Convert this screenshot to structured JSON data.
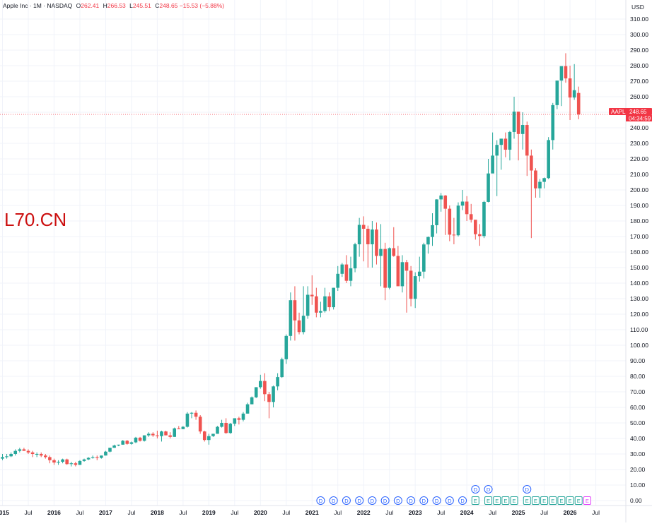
{
  "header": {
    "symbol_title": "Apple Inc · 1M · NASDAQ",
    "open_label": "O",
    "open": "262.41",
    "high_label": "H",
    "high": "266.53",
    "low_label": "L",
    "low": "245.51",
    "close_label": "C",
    "close": "248.65",
    "change": "−15.53 (−5.88%)"
  },
  "overlay_text": "L70.CN",
  "currency": "USD",
  "price_tag": {
    "symbol": "AAPL",
    "price": "248.65",
    "countdown": "04:34:59"
  },
  "colors": {
    "up": "#26a69a",
    "down": "#ef5350",
    "grid": "#f0f3fa",
    "dividend": "#2962ff",
    "earnings": "#26a69a",
    "earnings_future": "#e040fb"
  },
  "chart_data": {
    "type": "candlestick",
    "interval": "1M",
    "y_axis_ticks": [
      "0.00",
      "10.00",
      "20.00",
      "30.00",
      "40.00",
      "50.00",
      "60.00",
      "70.00",
      "80.00",
      "90.00",
      "100.00",
      "110.00",
      "120.00",
      "130.00",
      "140.00",
      "150.00",
      "160.00",
      "170.00",
      "180.00",
      "190.00",
      "200.00",
      "210.00",
      "220.00",
      "230.00",
      "240.00",
      "250.00",
      "260.00",
      "270.00",
      "280.00",
      "290.00",
      "300.00",
      "310.00"
    ],
    "ylim": [
      -10,
      320
    ],
    "x_axis_labels": [
      {
        "t": 0,
        "text": "2015",
        "bold": true
      },
      {
        "t": 6,
        "text": "Jul",
        "bold": false
      },
      {
        "t": 12,
        "text": "2016",
        "bold": true
      },
      {
        "t": 18,
        "text": "Jul",
        "bold": false
      },
      {
        "t": 24,
        "text": "2017",
        "bold": true
      },
      {
        "t": 30,
        "text": "Jul",
        "bold": false
      },
      {
        "t": 36,
        "text": "2018",
        "bold": true
      },
      {
        "t": 42,
        "text": "Jul",
        "bold": false
      },
      {
        "t": 48,
        "text": "2019",
        "bold": true
      },
      {
        "t": 54,
        "text": "Jul",
        "bold": false
      },
      {
        "t": 60,
        "text": "2020",
        "bold": true
      },
      {
        "t": 66,
        "text": "Jul",
        "bold": false
      },
      {
        "t": 72,
        "text": "2021",
        "bold": true
      },
      {
        "t": 78,
        "text": "Jul",
        "bold": false
      },
      {
        "t": 84,
        "text": "2022",
        "bold": true
      },
      {
        "t": 90,
        "text": "Jul",
        "bold": false
      },
      {
        "t": 96,
        "text": "2023",
        "bold": true
      },
      {
        "t": 102,
        "text": "Jul",
        "bold": false
      },
      {
        "t": 108,
        "text": "2024",
        "bold": true
      },
      {
        "t": 114,
        "text": "Jul",
        "bold": false
      },
      {
        "t": 120,
        "text": "2025",
        "bold": true
      },
      {
        "t": 126,
        "text": "Jul",
        "bold": false
      },
      {
        "t": 132,
        "text": "2026",
        "bold": true
      },
      {
        "t": 138,
        "text": "Jul",
        "bold": false
      }
    ],
    "current_price": 248.65,
    "candles": [
      [
        27,
        30,
        26,
        28
      ],
      [
        28,
        30,
        27,
        28.5
      ],
      [
        28.5,
        31,
        28,
        30
      ],
      [
        30,
        33,
        29,
        32
      ],
      [
        32,
        34,
        31,
        33
      ],
      [
        33,
        34,
        32,
        32
      ],
      [
        32,
        33,
        30,
        31
      ],
      [
        31,
        32,
        28,
        30
      ],
      [
        30,
        31,
        28,
        30
      ],
      [
        30,
        31,
        28,
        29
      ],
      [
        29,
        30,
        27,
        28
      ],
      [
        28,
        29,
        24,
        26
      ],
      [
        26,
        27,
        23,
        24.5
      ],
      [
        24.5,
        26,
        23,
        25
      ],
      [
        25,
        27,
        24,
        26.5
      ],
      [
        26.5,
        27,
        23,
        23.5
      ],
      [
        23.5,
        25,
        22,
        24
      ],
      [
        24,
        25,
        22,
        23
      ],
      [
        23,
        26,
        23,
        25.5
      ],
      [
        25.5,
        27,
        25,
        26.5
      ],
      [
        26.5,
        28,
        26,
        27.5
      ],
      [
        27.5,
        29,
        27,
        28
      ],
      [
        28,
        29,
        26,
        27.5
      ],
      [
        27.5,
        29,
        27,
        29
      ],
      [
        29,
        32,
        29,
        31.5
      ],
      [
        31.5,
        34,
        31,
        34
      ],
      [
        34,
        36,
        34,
        35.5
      ],
      [
        35.5,
        36,
        35,
        36
      ],
      [
        36,
        39,
        36,
        38.5
      ],
      [
        38.5,
        39,
        36,
        36.5
      ],
      [
        36.5,
        38,
        36,
        37.5
      ],
      [
        37.5,
        41,
        37,
        40.5
      ],
      [
        40.5,
        41,
        38,
        38.5
      ],
      [
        38.5,
        42,
        38,
        42
      ],
      [
        42,
        44,
        41,
        43
      ],
      [
        43,
        44,
        41,
        42
      ],
      [
        42,
        45,
        40,
        41.5
      ],
      [
        41.5,
        45,
        38,
        44.5
      ],
      [
        44.5,
        45,
        42,
        42
      ],
      [
        42,
        44,
        40,
        41
      ],
      [
        41,
        47,
        41,
        46.5
      ],
      [
        46.5,
        48,
        46,
        46
      ],
      [
        46,
        48,
        46,
        47.5
      ],
      [
        47.5,
        57,
        47,
        56
      ],
      [
        56,
        57,
        53,
        56.5
      ],
      [
        56.5,
        58,
        52,
        54
      ],
      [
        54,
        55,
        43,
        44.5
      ],
      [
        44.5,
        45,
        38,
        39
      ],
      [
        39,
        43,
        36,
        41.5
      ],
      [
        41.5,
        43,
        41,
        43
      ],
      [
        43,
        48,
        43,
        47.5
      ],
      [
        47.5,
        52,
        47,
        50
      ],
      [
        50,
        53,
        43,
        43.5
      ],
      [
        43.5,
        50,
        43,
        49.5
      ],
      [
        49.5,
        52,
        48,
        53
      ],
      [
        53,
        54,
        49,
        52
      ],
      [
        52,
        57,
        51,
        56
      ],
      [
        56,
        63,
        56,
        62
      ],
      [
        62,
        67,
        62,
        66.5
      ],
      [
        66.5,
        73,
        66,
        73
      ],
      [
        73,
        81,
        72,
        77
      ],
      [
        77,
        82,
        64,
        68.5
      ],
      [
        68.5,
        70,
        53,
        63.5
      ],
      [
        63.5,
        74,
        60,
        73.5
      ],
      [
        73.5,
        82,
        71,
        79.5
      ],
      [
        79.5,
        92,
        79,
        91
      ],
      [
        91,
        107,
        88,
        106
      ],
      [
        106,
        134,
        103,
        129
      ],
      [
        129,
        138,
        103,
        116
      ],
      [
        116,
        121,
        107,
        108.5
      ],
      [
        108.5,
        138,
        107,
        119
      ],
      [
        119,
        138,
        117,
        132.5
      ],
      [
        132.5,
        145,
        126,
        131.5
      ],
      [
        131.5,
        137,
        118,
        121
      ],
      [
        121,
        128,
        118,
        122
      ],
      [
        122,
        137,
        121,
        131.5
      ],
      [
        131.5,
        134,
        122,
        124.5
      ],
      [
        124.5,
        137,
        123,
        137
      ],
      [
        137,
        151,
        135,
        146
      ],
      [
        146,
        153,
        144,
        152
      ],
      [
        152,
        158,
        140,
        141.5
      ],
      [
        141.5,
        157,
        138,
        149.5
      ],
      [
        149.5,
        166,
        147,
        165
      ],
      [
        165,
        182,
        157,
        177.5
      ],
      [
        177.5,
        183,
        154,
        175
      ],
      [
        175,
        177,
        150,
        165
      ],
      [
        165,
        180,
        150,
        174.5
      ],
      [
        174.5,
        179,
        152,
        157.5
      ],
      [
        157.5,
        178,
        138,
        162
      ],
      [
        162,
        166,
        129,
        137
      ],
      [
        137,
        163,
        136,
        162.5
      ],
      [
        162.5,
        176,
        157,
        157.5
      ],
      [
        157.5,
        164,
        139,
        138
      ],
      [
        138,
        158,
        134,
        153.5
      ],
      [
        153.5,
        155,
        121,
        148
      ],
      [
        148,
        151,
        125,
        129.9
      ],
      [
        129.9,
        147,
        124,
        144.5
      ],
      [
        144.5,
        157,
        141,
        147.4
      ],
      [
        147.4,
        166,
        143,
        164.9
      ],
      [
        164.9,
        170,
        159,
        169.7
      ],
      [
        169.7,
        185,
        164,
        177.3
      ],
      [
        177.3,
        194,
        172,
        193.9
      ],
      [
        193.9,
        198,
        186,
        196.4
      ],
      [
        196.4,
        196.7,
        171,
        187.9
      ],
      [
        187.9,
        190,
        167,
        171.2
      ],
      [
        171.2,
        182,
        165,
        170.8
      ],
      [
        170.8,
        192,
        170,
        189.9
      ],
      [
        189.9,
        200,
        187,
        192.5
      ],
      [
        192.5,
        196,
        180,
        184.4
      ],
      [
        184.4,
        191,
        179,
        180.8
      ],
      [
        180.8,
        180,
        168,
        171.5
      ],
      [
        171.5,
        178,
        164,
        170.3
      ],
      [
        170.3,
        193,
        169,
        192.3
      ],
      [
        192.3,
        220,
        192,
        210.6
      ],
      [
        210.6,
        237,
        211,
        222.1
      ],
      [
        222.1,
        232,
        196,
        229
      ],
      [
        229,
        233,
        213,
        233
      ],
      [
        233,
        237,
        221,
        225.9
      ],
      [
        225.9,
        238,
        219,
        237.3
      ],
      [
        237.3,
        260,
        233,
        250.4
      ],
      [
        250.4,
        250,
        219,
        236
      ],
      [
        236,
        250,
        226,
        241.8
      ],
      [
        241.8,
        244,
        209,
        222.1
      ],
      [
        222.1,
        226,
        169,
        212.5
      ],
      [
        212.5,
        214,
        195,
        201
      ],
      [
        201,
        207,
        195,
        205.2
      ],
      [
        205.2,
        208,
        201,
        207.6
      ],
      [
        207.6,
        234,
        207,
        232.1
      ],
      [
        232.1,
        256,
        226,
        254.6
      ],
      [
        254.6,
        270,
        252,
        270.4
      ],
      [
        270.4,
        277,
        254,
        279.7
      ],
      [
        279.7,
        288,
        269,
        271.8
      ],
      [
        271.8,
        280,
        245,
        259.5
      ],
      [
        259.5,
        281,
        258,
        264.2
      ],
      [
        262.41,
        266.53,
        245.51,
        248.65
      ]
    ],
    "dividend_markers": [
      {
        "t": 110,
        "top": true
      },
      {
        "t": 113,
        "top": true
      },
      {
        "t": 122,
        "top": true
      },
      {
        "t": 74,
        "top": false
      },
      {
        "t": 77,
        "top": false
      },
      {
        "t": 80,
        "top": false
      },
      {
        "t": 83,
        "top": false
      },
      {
        "t": 86,
        "top": false
      },
      {
        "t": 89,
        "top": false
      },
      {
        "t": 92,
        "top": false
      },
      {
        "t": 95,
        "top": false
      },
      {
        "t": 98,
        "top": false
      },
      {
        "t": 101,
        "top": false
      },
      {
        "t": 104,
        "top": false
      },
      {
        "t": 107,
        "top": false
      }
    ],
    "dividend_label": "D",
    "earnings_markers": [
      {
        "t": 110,
        "future": false
      },
      {
        "t": 113,
        "future": false
      },
      {
        "t": 115,
        "future": false
      },
      {
        "t": 117,
        "future": false
      },
      {
        "t": 119,
        "future": false
      },
      {
        "t": 122,
        "future": false
      },
      {
        "t": 124,
        "future": false
      },
      {
        "t": 126,
        "future": false
      },
      {
        "t": 128,
        "future": false
      },
      {
        "t": 130,
        "future": false
      },
      {
        "t": 132,
        "future": false
      },
      {
        "t": 134,
        "future": false
      },
      {
        "t": 136,
        "future": true
      }
    ],
    "earnings_label": "E"
  }
}
